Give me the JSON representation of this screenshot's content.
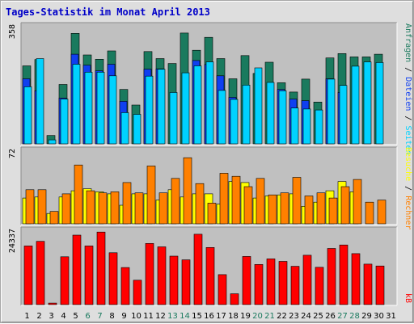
{
  "chart_data": {
    "type": "bar",
    "title": "Tages-Statistik im Monat April 2013",
    "x": [
      "1",
      "2",
      "3",
      "4",
      "5",
      "6",
      "7",
      "8",
      "9",
      "10",
      "11",
      "12",
      "13",
      "14",
      "15",
      "16",
      "17",
      "18",
      "19",
      "20",
      "21",
      "22",
      "23",
      "24",
      "25",
      "26",
      "27",
      "28",
      "29",
      "30",
      "31"
    ],
    "weekend_days": [
      "6",
      "7",
      "13",
      "14",
      "20",
      "21",
      "27",
      "28"
    ],
    "panels": [
      {
        "name": "top",
        "ymax_label": "358",
        "ylim": [
          0,
          358
        ],
        "series": [
          {
            "name": "Anfragen",
            "color": "#1a7a5e",
            "values": [
              235,
              254,
              25,
              179,
              333,
              268,
              255,
              280,
              164,
              117,
              278,
              257,
              242,
              334,
              282,
              321,
              257,
              196,
              266,
              212,
              246,
              184,
              156,
              195,
              126,
              259,
              272,
              262,
              262,
              270,
              0
            ]
          },
          {
            "name": "Dateien",
            "color": "#0f3ff0",
            "values": [
              196,
              160,
              null,
              138,
              270,
              237,
              220,
              240,
              128,
              null,
              225,
              226,
              null,
              null,
              251,
              239,
              205,
              140,
              null,
              null,
              null,
              164,
              135,
              130,
              null,
              196,
              155,
              null,
              null,
              null,
              null
            ]
          },
          {
            "name": "Seiten",
            "color": "#00d2ff",
            "values": [
              172,
              257,
              12,
              135,
              240,
              216,
              216,
              205,
              94,
              89,
              204,
              225,
              155,
              214,
              235,
              247,
              161,
              134,
              177,
              229,
              185,
              160,
              108,
              105,
              102,
              195,
              176,
              234,
              247,
              245,
              0
            ]
          }
        ]
      },
      {
        "name": "middle",
        "ymax_label": "72",
        "ylim": [
          0,
          72
        ],
        "series": [
          {
            "name": "Besuche",
            "color": "#ffff00",
            "values": [
              25,
              26,
              10,
              26,
              32,
              34,
              31,
              29,
              18,
              29,
              29,
              23,
              33,
              26,
              29,
              29,
              19,
              41,
              40,
              25,
              27,
              28,
              29,
              17,
              21,
              32,
              41,
              31,
              0,
              0,
              0
            ]
          },
          {
            "name": "Rechner",
            "color": "#ff8000",
            "values": [
              33,
              33,
              12,
              29,
              57,
              32,
              30,
              31,
              40,
              30,
              56,
              30,
              44,
              64,
              39,
              20,
              49,
              46,
              36,
              44,
              28,
              30,
              45,
              27,
              30,
              25,
              36,
              43,
              21,
              23,
              0
            ]
          }
        ]
      },
      {
        "name": "bottom",
        "ymax_label": "24337",
        "ylim": [
          0,
          24337
        ],
        "series": [
          {
            "name": "kB",
            "color": "#ff0000",
            "values": [
              19000,
              20500,
              500,
              15500,
              22500,
              19000,
              23500,
              16800,
              12000,
              7900,
              19800,
              18700,
              15700,
              14500,
              22800,
              18500,
              9700,
              3500,
              15600,
              13000,
              14800,
              14000,
              12400,
              16000,
              12100,
              18200,
              19300,
              16500,
              13100,
              12500,
              0
            ]
          }
        ]
      }
    ],
    "legend_groups": [
      {
        "name": "top-legend",
        "parts": [
          {
            "text": "Anfragen",
            "color": "#1a7a5e"
          },
          {
            "text": " / ",
            "color": "#000000"
          },
          {
            "text": "Dateien",
            "color": "#0f3ff0"
          },
          {
            "text": " / ",
            "color": "#000000"
          },
          {
            "text": "Seiten",
            "color": "#00d2ff"
          }
        ]
      },
      {
        "name": "middle-legend",
        "parts": [
          {
            "text": "Besuche",
            "color": "#ffff00"
          },
          {
            "text": " / ",
            "color": "#000000"
          },
          {
            "text": "Rechner",
            "color": "#ff8000"
          }
        ]
      },
      {
        "name": "bottom-legend",
        "parts": [
          {
            "text": "kB",
            "color": "#ff0000"
          }
        ]
      }
    ]
  }
}
